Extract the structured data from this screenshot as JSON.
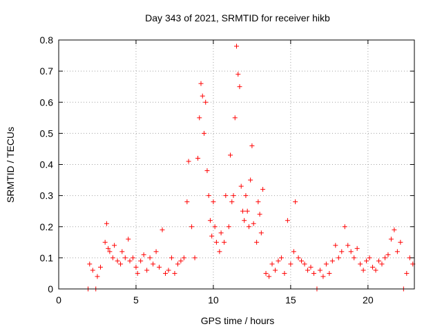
{
  "chart_data": {
    "type": "scatter",
    "title": "Day 343 of 2021, SRMTID for receiver hikb",
    "xlabel": "GPS time / hours",
    "ylabel": "SRMTID / TECUs",
    "xlim": [
      0,
      23
    ],
    "ylim": [
      0,
      0.8
    ],
    "xticks": [
      0,
      5,
      10,
      15,
      20
    ],
    "yticks": [
      0,
      0.1,
      0.2,
      0.3,
      0.4,
      0.5,
      0.6,
      0.7,
      0.8
    ],
    "grid": true,
    "marker": "+",
    "series": [
      {
        "name": "hikb",
        "color": "#ff0000",
        "x": [
          1.9,
          2.0,
          2.2,
          2.4,
          2.5,
          2.7,
          3.0,
          3.1,
          3.2,
          3.3,
          3.5,
          3.6,
          3.8,
          4.0,
          4.1,
          4.3,
          4.5,
          4.6,
          4.8,
          5.0,
          5.1,
          5.3,
          5.5,
          5.7,
          5.9,
          6.1,
          6.3,
          6.5,
          6.7,
          6.9,
          7.1,
          7.3,
          7.5,
          7.7,
          7.9,
          8.1,
          8.3,
          8.4,
          8.6,
          8.8,
          9.0,
          9.1,
          9.2,
          9.3,
          9.4,
          9.5,
          9.6,
          9.7,
          9.8,
          9.9,
          10.0,
          10.1,
          10.2,
          10.4,
          10.5,
          10.7,
          10.8,
          11.0,
          11.1,
          11.2,
          11.3,
          11.4,
          11.5,
          11.6,
          11.7,
          11.8,
          11.9,
          12.0,
          12.1,
          12.2,
          12.3,
          12.4,
          12.5,
          12.6,
          12.8,
          12.9,
          13.0,
          13.1,
          13.2,
          13.4,
          13.6,
          13.8,
          14.0,
          14.2,
          14.4,
          14.6,
          14.8,
          15.0,
          15.2,
          15.3,
          15.5,
          15.7,
          15.9,
          16.1,
          16.3,
          16.5,
          16.7,
          16.9,
          17.1,
          17.3,
          17.5,
          17.7,
          17.9,
          18.1,
          18.3,
          18.5,
          18.7,
          18.9,
          19.1,
          19.3,
          19.5,
          19.7,
          19.9,
          20.1,
          20.3,
          20.5,
          20.7,
          20.9,
          21.1,
          21.3,
          21.5,
          21.7,
          21.9,
          22.1,
          22.3,
          22.5,
          22.7,
          22.9
        ],
        "y": [
          0.0,
          0.08,
          0.06,
          0.0,
          0.04,
          0.07,
          0.15,
          0.21,
          0.13,
          0.12,
          0.1,
          0.14,
          0.09,
          0.08,
          0.12,
          0.1,
          0.16,
          0.09,
          0.1,
          0.07,
          0.05,
          0.09,
          0.11,
          0.06,
          0.1,
          0.08,
          0.12,
          0.07,
          0.19,
          0.05,
          0.06,
          0.1,
          0.05,
          0.08,
          0.09,
          0.1,
          0.28,
          0.41,
          0.2,
          0.1,
          0.42,
          0.55,
          0.66,
          0.62,
          0.5,
          0.6,
          0.38,
          0.3,
          0.22,
          0.17,
          0.28,
          0.2,
          0.15,
          0.12,
          0.18,
          0.15,
          0.3,
          0.2,
          0.43,
          0.28,
          0.3,
          0.55,
          0.78,
          0.69,
          0.65,
          0.33,
          0.25,
          0.22,
          0.3,
          0.25,
          0.2,
          0.35,
          0.46,
          0.21,
          0.15,
          0.28,
          0.24,
          0.18,
          0.32,
          0.05,
          0.04,
          0.08,
          0.06,
          0.09,
          0.1,
          0.05,
          0.22,
          0.08,
          0.12,
          0.28,
          0.1,
          0.09,
          0.08,
          0.06,
          0.07,
          0.05,
          0.0,
          0.06,
          0.04,
          0.08,
          0.05,
          0.09,
          0.14,
          0.1,
          0.12,
          0.2,
          0.14,
          0.12,
          0.1,
          0.13,
          0.08,
          0.06,
          0.09,
          0.1,
          0.07,
          0.06,
          0.09,
          0.08,
          0.1,
          0.11,
          0.16,
          0.19,
          0.12,
          0.15,
          0.0,
          0.05,
          0.1,
          0.08
        ]
      }
    ]
  }
}
